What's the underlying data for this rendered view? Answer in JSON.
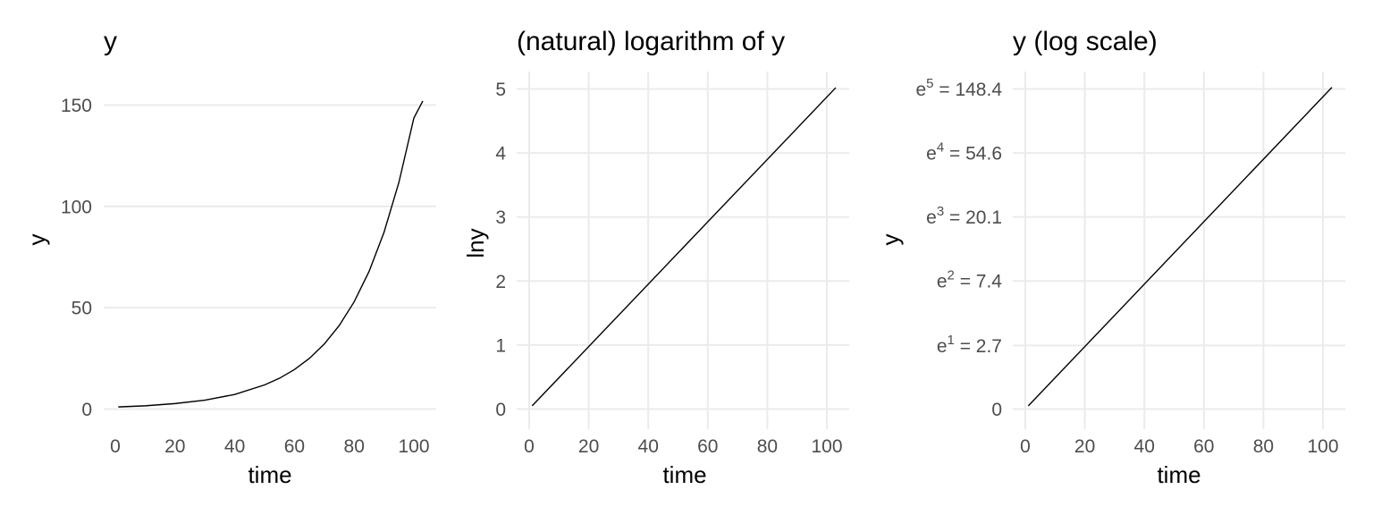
{
  "chart_data": [
    {
      "type": "line",
      "title": "y",
      "xlabel": "time",
      "ylabel": "y",
      "xlim": [
        1,
        103
      ],
      "ylim": [
        1,
        152
      ],
      "x_ticks": [
        0,
        20,
        40,
        60,
        80,
        100
      ],
      "x_tick_labels": [
        "0",
        "20",
        "40",
        "60",
        "80",
        "100"
      ],
      "y_ticks": [
        0,
        50,
        100,
        150
      ],
      "y_tick_labels": [
        "0",
        "50",
        "100",
        "150"
      ],
      "grid": "horizontal major only",
      "series": [
        {
          "x": [
            1,
            10,
            20,
            30,
            40,
            50,
            55,
            60,
            65,
            70,
            75,
            80,
            85,
            90,
            95,
            100,
            103
          ],
          "values": [
            1.05,
            1.6,
            2.7,
            4.4,
            7.2,
            11.9,
            15.2,
            19.5,
            25.0,
            32.1,
            41.2,
            52.9,
            67.9,
            87.2,
            111.9,
            143.6,
            152.0
          ]
        }
      ]
    },
    {
      "type": "line",
      "title": "(natural) logarithm of y",
      "xlabel": "time",
      "ylabel": "lny",
      "xlim": [
        1,
        103
      ],
      "ylim": [
        0.05,
        5.02
      ],
      "x_ticks": [
        0,
        20,
        40,
        60,
        80,
        100
      ],
      "x_tick_labels": [
        "0",
        "20",
        "40",
        "60",
        "80",
        "100"
      ],
      "y_ticks": [
        0,
        1,
        2,
        3,
        4,
        5
      ],
      "y_tick_labels": [
        "0",
        "1",
        "2",
        "3",
        "4",
        "5"
      ],
      "grid": "major on both axes",
      "series": [
        {
          "x": [
            1,
            103
          ],
          "values": [
            0.05,
            5.02
          ]
        }
      ]
    },
    {
      "type": "line",
      "title": "y (log scale)",
      "xlabel": "time",
      "ylabel": "y",
      "y_scale": "log",
      "xlim": [
        1,
        103
      ],
      "ylim": [
        1.05,
        152
      ],
      "x_ticks": [
        0,
        20,
        40,
        60,
        80,
        100
      ],
      "x_tick_labels": [
        "0",
        "20",
        "40",
        "60",
        "80",
        "100"
      ],
      "y_ticks": [
        1,
        2.7,
        7.4,
        20.1,
        54.6,
        148.4
      ],
      "y_tick_labels": [
        {
          "base": "0",
          "exp": "",
          "rest": ""
        },
        {
          "base": "e",
          "exp": "1",
          "rest": " = 2.7"
        },
        {
          "base": "e",
          "exp": "2",
          "rest": " = 7.4"
        },
        {
          "base": "e",
          "exp": "3",
          "rest": " = 20.1"
        },
        {
          "base": "e",
          "exp": "4",
          "rest": " = 54.6"
        },
        {
          "base": "e",
          "exp": "5",
          "rest": " = 148.4"
        }
      ],
      "grid": "major on both axes",
      "series": [
        {
          "x": [
            1,
            103
          ],
          "values": [
            1.05,
            152.0
          ]
        }
      ]
    }
  ]
}
